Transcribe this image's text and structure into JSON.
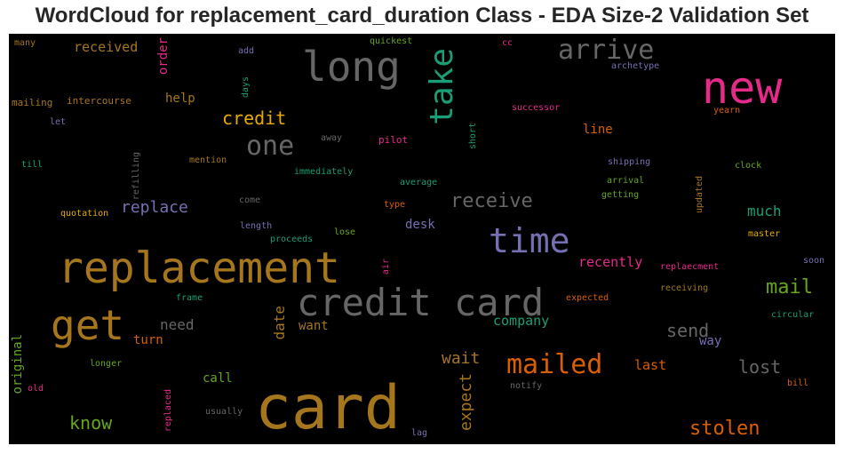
{
  "title": "WordCloud for replacement_card_duration Class - EDA Size-2 Validation Set",
  "palette": {
    "gray": "#666666",
    "gold": "#a6761d",
    "pink": "#e7298a",
    "teal": "#1b9e77",
    "orange": "#d95f02",
    "purple": "#7570b3",
    "green": "#66a61e",
    "yellow": "#e6ab02"
  },
  "words": [
    {
      "text": "card",
      "color": "gold"
    },
    {
      "text": "replacement",
      "color": "gold"
    },
    {
      "text": "credit card",
      "color": "gray"
    },
    {
      "text": "new",
      "color": "pink"
    },
    {
      "text": "time",
      "color": "purple"
    },
    {
      "text": "long",
      "color": "gray"
    },
    {
      "text": "get",
      "color": "gold"
    },
    {
      "text": "take",
      "color": "teal"
    },
    {
      "text": "arrive",
      "color": "gray"
    },
    {
      "text": "mailed",
      "color": "orange"
    },
    {
      "text": "one",
      "color": "gray"
    },
    {
      "text": "stolen",
      "color": "orange"
    },
    {
      "text": "mail",
      "color": "green"
    },
    {
      "text": "receive",
      "color": "gray"
    },
    {
      "text": "credit",
      "color": "yellow"
    },
    {
      "text": "lost",
      "color": "gray"
    },
    {
      "text": "send",
      "color": "gray"
    },
    {
      "text": "know",
      "color": "green"
    },
    {
      "text": "replace",
      "color": "purple"
    },
    {
      "text": "wait",
      "color": "gold"
    },
    {
      "text": "expect",
      "color": "gold"
    },
    {
      "text": "date",
      "color": "gold"
    },
    {
      "text": "much",
      "color": "teal"
    },
    {
      "text": "company",
      "color": "teal"
    },
    {
      "text": "recently",
      "color": "pink"
    },
    {
      "text": "need",
      "color": "gray"
    },
    {
      "text": "turn",
      "color": "orange"
    },
    {
      "text": "want",
      "color": "gold"
    },
    {
      "text": "last",
      "color": "orange"
    },
    {
      "text": "way",
      "color": "purple"
    },
    {
      "text": "call",
      "color": "green"
    },
    {
      "text": "desk",
      "color": "purple"
    },
    {
      "text": "line",
      "color": "orange"
    },
    {
      "text": "help",
      "color": "gold"
    },
    {
      "text": "received",
      "color": "gold"
    },
    {
      "text": "order",
      "color": "pink"
    },
    {
      "text": "original",
      "color": "green"
    },
    {
      "text": "many",
      "color": "gold"
    },
    {
      "text": "add",
      "color": "purple"
    },
    {
      "text": "quickest",
      "color": "green"
    },
    {
      "text": "cc",
      "color": "pink"
    },
    {
      "text": "archetype",
      "color": "purple"
    },
    {
      "text": "days",
      "color": "teal"
    },
    {
      "text": "mailing",
      "color": "gold"
    },
    {
      "text": "intercourse",
      "color": "gold"
    },
    {
      "text": "successor",
      "color": "pink"
    },
    {
      "text": "yearn",
      "color": "orange"
    },
    {
      "text": "let",
      "color": "purple"
    },
    {
      "text": "away",
      "color": "gray"
    },
    {
      "text": "pilot",
      "color": "pink"
    },
    {
      "text": "short",
      "color": "teal"
    },
    {
      "text": "till",
      "color": "teal"
    },
    {
      "text": "refilling",
      "color": "gray"
    },
    {
      "text": "mention",
      "color": "gold"
    },
    {
      "text": "immediately",
      "color": "teal"
    },
    {
      "text": "shipping",
      "color": "purple"
    },
    {
      "text": "clock",
      "color": "green"
    },
    {
      "text": "average",
      "color": "teal"
    },
    {
      "text": "arrival",
      "color": "green"
    },
    {
      "text": "getting",
      "color": "green"
    },
    {
      "text": "updated",
      "color": "gold"
    },
    {
      "text": "quotation",
      "color": "yellow"
    },
    {
      "text": "come",
      "color": "gray"
    },
    {
      "text": "type",
      "color": "orange"
    },
    {
      "text": "length",
      "color": "purple"
    },
    {
      "text": "proceeds",
      "color": "teal"
    },
    {
      "text": "lose",
      "color": "green"
    },
    {
      "text": "master",
      "color": "yellow"
    },
    {
      "text": "air",
      "color": "pink"
    },
    {
      "text": "soon",
      "color": "purple"
    },
    {
      "text": "replaecment",
      "color": "pink"
    },
    {
      "text": "frame",
      "color": "teal"
    },
    {
      "text": "expected",
      "color": "orange"
    },
    {
      "text": "receiving",
      "color": "gold"
    },
    {
      "text": "circular",
      "color": "teal"
    },
    {
      "text": "longer",
      "color": "green"
    },
    {
      "text": "old",
      "color": "pink"
    },
    {
      "text": "notify",
      "color": "gray"
    },
    {
      "text": "bill",
      "color": "orange"
    },
    {
      "text": "replaced",
      "color": "pink"
    },
    {
      "text": "usually",
      "color": "gray"
    },
    {
      "text": "lag",
      "color": "purple"
    }
  ]
}
